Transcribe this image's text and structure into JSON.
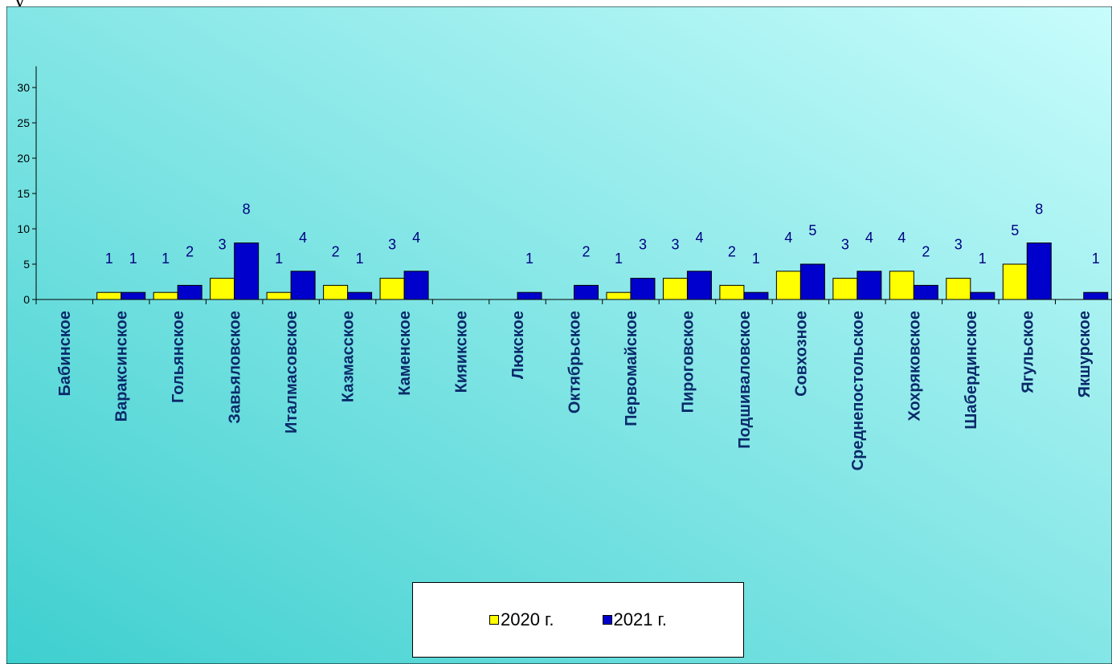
{
  "top_glyph": "у",
  "colors": {
    "series_2020": "#ffff00",
    "series_2021": "#0000cc",
    "label_text": "#000080",
    "category_text": "#0a2a6a",
    "bg_gradient": [
      "#3fcfcf",
      "#c8fcfc"
    ]
  },
  "chart_data": {
    "type": "bar",
    "title": "",
    "xlabel": "",
    "ylabel": "",
    "ylim": [
      0,
      33
    ],
    "yticks": [
      0,
      5,
      10,
      15,
      20,
      25,
      30
    ],
    "grid": false,
    "legend_position": "bottom",
    "categories": [
      "Бабинское",
      "Вараксинское",
      "Гольянское",
      "Завьяловское",
      "Италмасовское",
      "Казмасское",
      "Каменское",
      "Кияикское",
      "Люкское",
      "Октябрьское",
      "Первомайское",
      "Пироговское",
      "Подшиваловское",
      "Совхозное",
      "Среднепостольское",
      "Хохряковское",
      "Шабердинское",
      "Ягульское",
      "Якшурское"
    ],
    "series": [
      {
        "name": "2020 г.",
        "values": [
          0,
          1,
          1,
          3,
          1,
          2,
          3,
          0,
          0,
          0,
          1,
          3,
          2,
          4,
          3,
          4,
          3,
          5,
          0
        ]
      },
      {
        "name": "2021 г.",
        "values": [
          0,
          1,
          2,
          8,
          4,
          1,
          4,
          0,
          1,
          2,
          3,
          4,
          1,
          5,
          4,
          2,
          1,
          8,
          1
        ]
      }
    ]
  }
}
